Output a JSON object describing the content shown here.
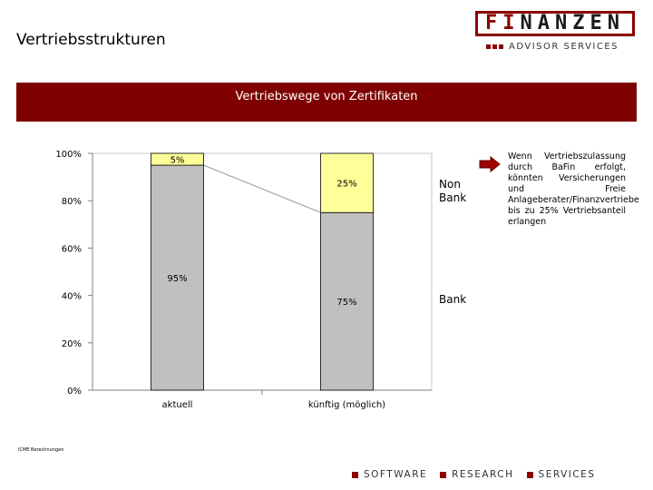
{
  "header": {
    "title": "Vertriebsstrukturen",
    "logo_text_a": "FI",
    "logo_text_b": "NANZEN",
    "logo_subtitle": "ADVISOR SERVICES"
  },
  "banner": {
    "title": "Vertriebswege von Zertifikaten"
  },
  "colors": {
    "accent": "#7f0000",
    "non_bank": "#ffff99",
    "bank": "#c0c0c0"
  },
  "chart_data": {
    "type": "bar",
    "stacked": true,
    "categories": [
      "aktuell",
      "künftig (möglich)"
    ],
    "series": [
      {
        "name": "Bank",
        "values": [
          95,
          75
        ],
        "labels": [
          "95%",
          "75%"
        ],
        "color": "#c0c0c0"
      },
      {
        "name": "Non Bank",
        "values": [
          5,
          25
        ],
        "labels": [
          "5%",
          "25%"
        ],
        "color": "#ffff99"
      }
    ],
    "yticks": [
      "0%",
      "20%",
      "40%",
      "60%",
      "80%",
      "100%"
    ],
    "ylim": [
      0,
      100
    ],
    "grid": false,
    "legend": "right"
  },
  "side_labels": {
    "non_bank": "Non\nBank",
    "bank": "Bank"
  },
  "note": {
    "icon": "right-arrow-icon",
    "text": "Wenn Vertriebszulassung durch BaFin erfolgt, könnten Versicherungen und Freie Anlageberater/Finanzvertriebe bis zu 25% Vertriebsanteil erlangen"
  },
  "source": "ICME Berechnungen",
  "footer": {
    "items": [
      "SOFTWARE",
      "RESEARCH",
      "SERVICES"
    ]
  }
}
